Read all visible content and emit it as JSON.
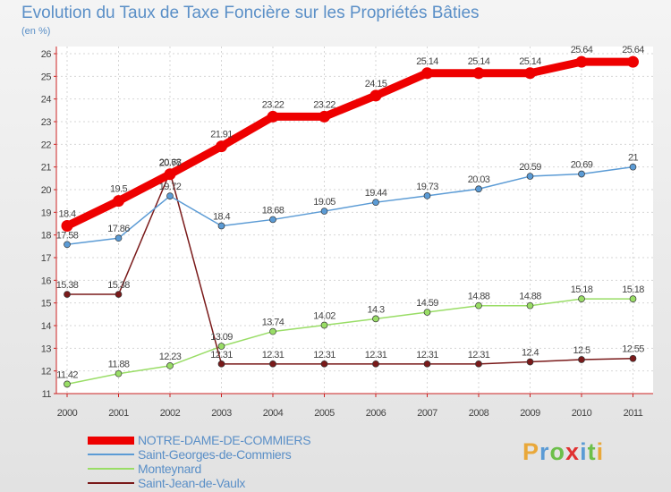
{
  "chart_data": {
    "type": "line",
    "title": "Evolution du Taux de Taxe Foncière sur les Propriétés Bâties",
    "unit_label": "(en %)",
    "xlabel": "",
    "ylabel": "(en %)",
    "x": [
      "2000",
      "2001",
      "2002",
      "2003",
      "2004",
      "2005",
      "2006",
      "2007",
      "2008",
      "2009",
      "2010",
      "2011"
    ],
    "ylim": [
      11,
      26
    ],
    "yticks": [
      11,
      12,
      13,
      14,
      15,
      16,
      17,
      18,
      19,
      20,
      21,
      22,
      23,
      24,
      25,
      26
    ],
    "grid": true,
    "series": [
      {
        "name": "NOTRE-DAME-DE-COMMIERS",
        "color": "#ee0000",
        "values": [
          18.4,
          19.5,
          20.68,
          21.91,
          23.22,
          23.22,
          24.15,
          25.14,
          25.14,
          25.14,
          25.64,
          25.64
        ],
        "labels": [
          "18.4",
          "19.5",
          "20.68",
          "21.91",
          "23.22",
          "23.22",
          "24.15",
          "25.14",
          "25.14",
          "25.14",
          "25.64",
          "25.64"
        ]
      },
      {
        "name": "Saint-Georges-de-Commiers",
        "color": "#5b9bd5",
        "values": [
          17.58,
          17.86,
          19.72,
          18.4,
          18.68,
          19.05,
          19.44,
          19.73,
          20.03,
          20.59,
          20.69,
          21
        ],
        "labels": [
          "17.58",
          "17.86",
          "19.72",
          "18.4",
          "18.68",
          "19.05",
          "19.44",
          "19.73",
          "20.03",
          "20.59",
          "20.69",
          "21"
        ]
      },
      {
        "name": "Monteynard",
        "color": "#99dd66",
        "values": [
          11.42,
          11.88,
          12.23,
          13.09,
          13.74,
          14.02,
          14.3,
          14.59,
          14.88,
          14.88,
          15.18,
          15.18
        ],
        "labels": [
          "11.42",
          "11.88",
          "12.23",
          "13.09",
          "13.74",
          "14.02",
          "14.3",
          "14.59",
          "14.88",
          "14.88",
          "15.18",
          "15.18"
        ]
      },
      {
        "name": "Saint-Jean-de-Vaulx",
        "color": "#7a1a1a",
        "values": [
          15.38,
          15.38,
          20.77,
          12.31,
          12.31,
          12.31,
          12.31,
          12.31,
          12.31,
          12.4,
          12.5,
          12.55
        ],
        "labels": [
          "15.38",
          "15.38",
          "20.77",
          "12.31",
          "12.31",
          "12.31",
          "12.31",
          "12.31",
          "12.31",
          "12.4",
          "12.5",
          "12.55"
        ]
      }
    ],
    "legend": [
      "NOTRE-DAME-DE-COMMIERS",
      "Saint-Georges-de-Commiers",
      "Monteynard",
      "Saint-Jean-de-Vaulx"
    ],
    "legend_position": "bottom-left"
  },
  "brand": {
    "letters": [
      "P",
      "r",
      "o",
      "x",
      "i",
      "t",
      "i"
    ],
    "colors": [
      "#e9a83a",
      "#5b9bd5",
      "#6cbf4a",
      "#e03131",
      "#5b9bd5",
      "#6cbf4a",
      "#e9a83a"
    ]
  }
}
